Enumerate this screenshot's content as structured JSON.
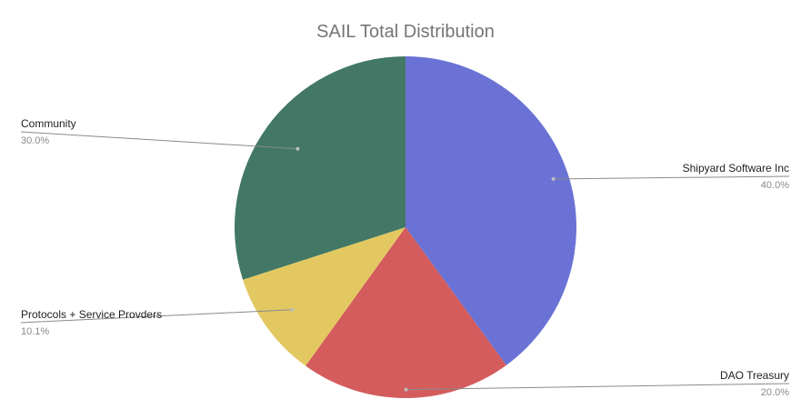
{
  "chart_data": {
    "type": "pie",
    "title": "SAIL Total Distribution",
    "slices": [
      {
        "label": "Shipyard Software Inc",
        "value": 40.0,
        "percent_label": "40.0%",
        "color": "#6a72d5"
      },
      {
        "label": "DAO Treasury",
        "value": 20.0,
        "percent_label": "20.0%",
        "color": "#d45c5c"
      },
      {
        "label": "Protocols + Service Provders",
        "value": 10.1,
        "percent_label": "10.1%",
        "color": "#e3c862"
      },
      {
        "label": "Community",
        "value": 30.0,
        "percent_label": "30.0%",
        "color": "#427865"
      }
    ],
    "legend": "none",
    "start_angle": "top",
    "direction": "clockwise"
  }
}
